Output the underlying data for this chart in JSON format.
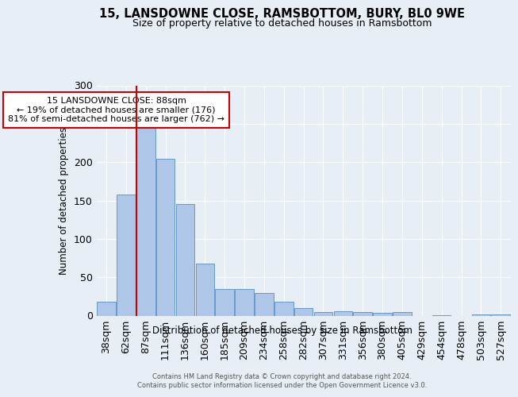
{
  "title1": "15, LANSDOWNE CLOSE, RAMSBOTTOM, BURY, BL0 9WE",
  "title2": "Size of property relative to detached houses in Ramsbottom",
  "xlabel": "Distribution of detached houses by size in Ramsbottom",
  "ylabel": "Number of detached properties",
  "categories": [
    "38sqm",
    "62sqm",
    "87sqm",
    "111sqm",
    "136sqm",
    "160sqm",
    "185sqm",
    "209sqm",
    "234sqm",
    "258sqm",
    "282sqm",
    "307sqm",
    "331sqm",
    "356sqm",
    "380sqm",
    "405sqm",
    "429sqm",
    "454sqm",
    "478sqm",
    "503sqm",
    "527sqm"
  ],
  "values": [
    18,
    158,
    251,
    204,
    145,
    68,
    35,
    35,
    29,
    18,
    10,
    5,
    6,
    5,
    4,
    5,
    0,
    1,
    0,
    2,
    2
  ],
  "bar_color": "#aec6e8",
  "bar_edge_color": "#6699cc",
  "highlight_bar_index": 2,
  "vline_color": "#cc0000",
  "annotation_title": "15 LANSDOWNE CLOSE: 88sqm",
  "annotation_line1": "← 19% of detached houses are smaller (176)",
  "annotation_line2": "81% of semi-detached houses are larger (762) →",
  "annotation_box_color": "#ffffff",
  "annotation_box_edge_color": "#cc0000",
  "ylim": [
    0,
    300
  ],
  "yticks": [
    0,
    50,
    100,
    150,
    200,
    250,
    300
  ],
  "bg_color": "#e8eef5",
  "plot_bg_color": "#e8eef5",
  "grid_color": "#ffffff",
  "footer1": "Contains HM Land Registry data © Crown copyright and database right 2024.",
  "footer2": "Contains public sector information licensed under the Open Government Licence v3.0."
}
